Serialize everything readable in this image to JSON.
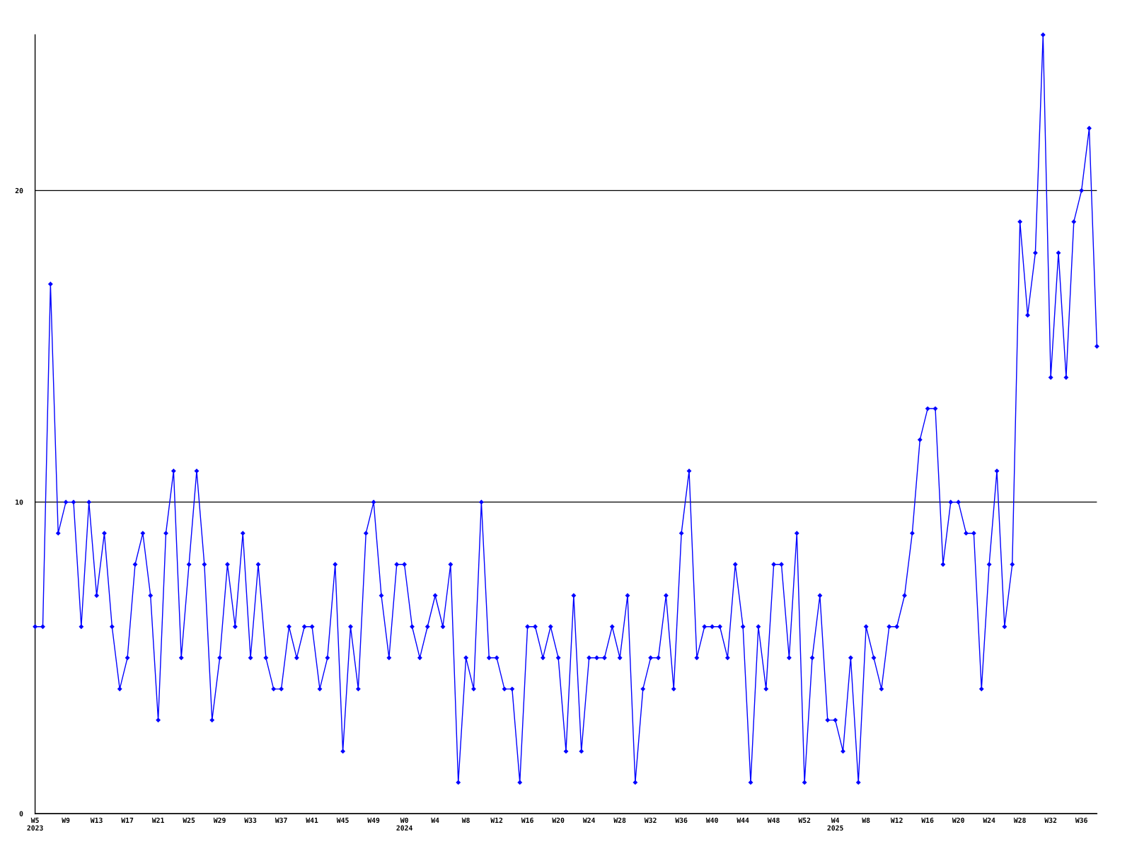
{
  "chart_data": {
    "type": "line",
    "categories": [
      "W5\n2023",
      null,
      null,
      null,
      "W9",
      null,
      null,
      null,
      "W13",
      null,
      null,
      null,
      "W17",
      null,
      null,
      null,
      "W21",
      null,
      null,
      null,
      "W25",
      null,
      null,
      null,
      "W29",
      null,
      null,
      null,
      "W33",
      null,
      null,
      null,
      "W37",
      null,
      null,
      null,
      "W41",
      null,
      null,
      null,
      "W45",
      null,
      null,
      null,
      "W49",
      null,
      null,
      null,
      "W0\n2024",
      null,
      null,
      null,
      "W4",
      null,
      null,
      null,
      "W8",
      null,
      null,
      null,
      "W12",
      null,
      null,
      null,
      "W16",
      null,
      null,
      null,
      "W20",
      null,
      null,
      null,
      "W24",
      null,
      null,
      null,
      "W28",
      null,
      null,
      null,
      "W32",
      null,
      null,
      null,
      "W36",
      null,
      null,
      null,
      "W40",
      null,
      null,
      null,
      "W44",
      null,
      null,
      null,
      "W48",
      null,
      null,
      null,
      "W52",
      null,
      null,
      null,
      "W4\n2025",
      null,
      null,
      null,
      "W8",
      null,
      null,
      null,
      "W12",
      null,
      null,
      null,
      "W16",
      null,
      null,
      null,
      "W20",
      null,
      null,
      null,
      "W24",
      null,
      null,
      null,
      "W28",
      null,
      null,
      null,
      "W32",
      null,
      null,
      null,
      "W36",
      null,
      null
    ],
    "values": [
      6,
      6,
      17,
      9,
      10,
      10,
      6,
      10,
      7,
      9,
      6,
      4,
      5,
      8,
      9,
      7,
      3,
      9,
      11,
      5,
      8,
      11,
      8,
      3,
      5,
      8,
      6,
      9,
      5,
      8,
      5,
      4,
      4,
      6,
      5,
      6,
      6,
      4,
      5,
      8,
      2,
      6,
      4,
      9,
      10,
      7,
      5,
      8,
      8,
      6,
      5,
      6,
      7,
      6,
      8,
      1,
      5,
      4,
      10,
      5,
      5,
      4,
      4,
      1,
      6,
      6,
      5,
      6,
      5,
      2,
      7,
      2,
      5,
      5,
      5,
      6,
      5,
      7,
      1,
      4,
      5,
      5,
      7,
      4,
      9,
      11,
      5,
      6,
      6,
      6,
      5,
      8,
      6,
      1,
      6,
      4,
      8,
      8,
      5,
      9,
      1,
      5,
      7,
      3,
      3,
      2,
      5,
      1,
      6,
      5,
      4,
      6,
      6,
      7,
      9,
      12,
      13,
      13,
      8,
      10,
      10,
      9,
      9,
      4,
      8,
      11,
      6,
      8,
      19,
      16,
      18,
      25,
      14,
      18,
      14,
      19,
      20,
      22,
      15
    ],
    "color": "#0000ff",
    "ylim": [
      0,
      25
    ],
    "yticks": [
      0,
      10,
      20
    ],
    "grid": "y",
    "marker": "diamond",
    "line_style": "solid"
  }
}
